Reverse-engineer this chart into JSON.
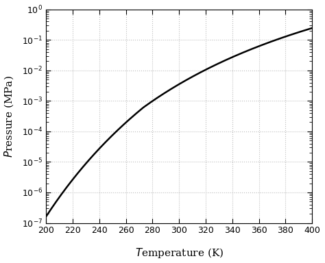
{
  "title": "",
  "xlabel": "Temperature (K)",
  "ylabel": "Pressure (MPa)",
  "xmin": 200,
  "xmax": 400,
  "ymin": 1e-07,
  "ymax": 1.0,
  "xticks": [
    200,
    220,
    240,
    260,
    280,
    300,
    320,
    340,
    360,
    380,
    400
  ],
  "ytick_powers": [
    -7,
    -6,
    -5,
    -4,
    -3,
    -2,
    -1,
    0
  ],
  "line_color": "#000000",
  "line_width": 1.8,
  "grid_color": "#bbbbbb",
  "grid_style": ":",
  "grid_linewidth": 0.8,
  "background_color": "#ffffff",
  "figsize": [
    4.74,
    3.84
  ],
  "dpi": 100
}
